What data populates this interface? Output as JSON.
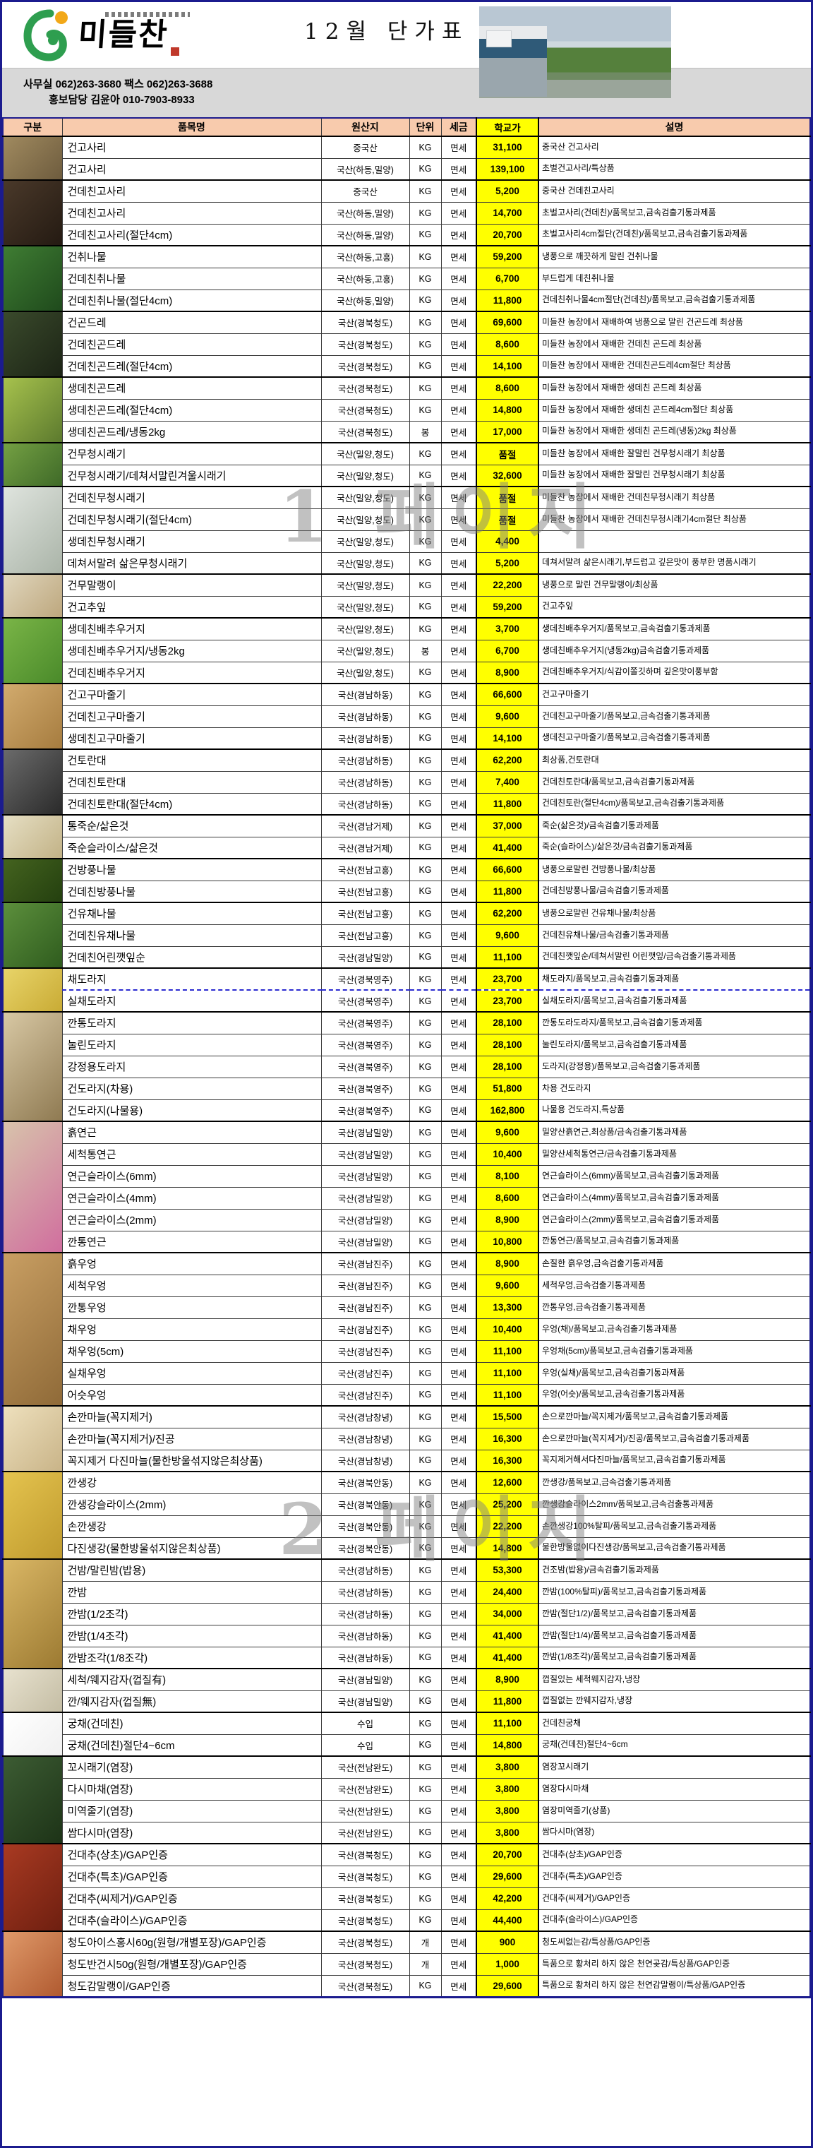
{
  "header": {
    "logo_text": "미들찬",
    "title": "12월 단가표",
    "contact_line1": "사무실 062)263-3680 팩스 062)263-3688",
    "contact_line2": "홍보담당 김윤아 010-7903-8933"
  },
  "watermarks": {
    "page1": "1 페이지",
    "page2": "2 페이지"
  },
  "accent_colors": {
    "header_bg": "#F8CBAD",
    "price_bg": "#FFFF00",
    "sheet_border": "#1B1B8E",
    "contact_bg": "#D8D8D8"
  },
  "table": {
    "columns": [
      "구분",
      "품목명",
      "원산지",
      "단위",
      "세금",
      "학교가",
      "설명"
    ],
    "rows": [
      [
        "건고사리",
        "중국산",
        "KG",
        "면세",
        "31,100",
        "중국산 건고사리"
      ],
      [
        "건고사리",
        "국산(하동,밀양)",
        "KG",
        "면세",
        "139,100",
        "초벌건고사리/특상품"
      ],
      [
        "건데친고사리",
        "중국산",
        "KG",
        "면세",
        "5,200",
        "중국산 건데친고사리"
      ],
      [
        "건데친고사리",
        "국산(하동,밀양)",
        "KG",
        "면세",
        "14,700",
        "초벌고사리(건데친)/품목보고,금속검출기통과제품"
      ],
      [
        "건데친고사리(절단4cm)",
        "국산(하동,밀양)",
        "KG",
        "면세",
        "20,700",
        "초벌고사리4cm절단(건데친)/품목보고,금속검출기통과제품"
      ],
      [
        "건취나물",
        "국산(하동,고흥)",
        "KG",
        "면세",
        "59,200",
        "냉풍으로 깨끗하게 말린 건취나물"
      ],
      [
        "건데친취나물",
        "국산(하동,고흥)",
        "KG",
        "면세",
        "6,700",
        "부드럽게 데친취나물"
      ],
      [
        "건데친취나물(절단4cm)",
        "국산(하동,밀양)",
        "KG",
        "면세",
        "11,800",
        "건데친취나물4cm절단(건데친)/품목보고,금속검출기통과제품"
      ],
      [
        "건곤드레",
        "국산(경북청도)",
        "KG",
        "면세",
        "69,600",
        "미들찬 농장에서 재배하여 냉풍으로 말린 건곤드레 최상품"
      ],
      [
        "건데친곤드레",
        "국산(경북청도)",
        "KG",
        "면세",
        "8,600",
        "미들찬 농장에서 재배한 건데친 곤드레 최상품"
      ],
      [
        "건데친곤드레(절단4cm)",
        "국산(경북청도)",
        "KG",
        "면세",
        "14,100",
        "미들찬 농장에서 재배한 건데친곤드레4cm절단 최상품"
      ],
      [
        "생데친곤드레",
        "국산(경북청도)",
        "KG",
        "면세",
        "8,600",
        "미들찬 농장에서 재배한 생데친 곤드레 최상품"
      ],
      [
        "생데친곤드레(절단4cm)",
        "국산(경북청도)",
        "KG",
        "면세",
        "14,800",
        "미들찬 농장에서 재배한 생데친 곤드레4cm절단 최상품"
      ],
      [
        "생데친곤드레/냉동2kg",
        "국산(경북청도)",
        "봉",
        "면세",
        "17,000",
        "미들찬 농장에서 재배한 생데친 곤드레(냉동)2kg 최상품"
      ],
      [
        "건무청시래기",
        "국산(밀양,청도)",
        "KG",
        "면세",
        "품절",
        "미들찬 농장에서 재배한 잘말린 건무청시래기 최상품"
      ],
      [
        "건무청시래기/데쳐서말린겨울시래기",
        "국산(밀양,청도)",
        "KG",
        "면세",
        "32,600",
        "미들찬 농장에서 재배한 잘말린 건무청시래기 최상품"
      ],
      [
        "건데친무청시래기",
        "국산(밀양,청도)",
        "KG",
        "면세",
        "품절",
        "미들찬 농장에서 재배한 건데친무청시래기 최상품"
      ],
      [
        "건데친무청시래기(절단4cm)",
        "국산(밀양,청도)",
        "KG",
        "면세",
        "품절",
        "미들찬 농장에서 재배한 건데친무청시래기4cm절단 최상품"
      ],
      [
        "생데친무청시래기",
        "국산(밀양,청도)",
        "KG",
        "면세",
        "4,400",
        ""
      ],
      [
        "데쳐서말려 삶은무청시래기",
        "국산(밀양,청도)",
        "KG",
        "면세",
        "5,200",
        "데쳐서말려 삶은시래기,부드럽고 깊은맛이 풍부한 명품시래기"
      ],
      [
        "건무말랭이",
        "국산(밀양,청도)",
        "KG",
        "면세",
        "22,200",
        "냉풍으로 말린 건무말랭이/최상품"
      ],
      [
        "건고추잎",
        "국산(밀양,청도)",
        "KG",
        "면세",
        "59,200",
        "건고추잎"
      ],
      [
        "생데친배추우거지",
        "국산(밀양,청도)",
        "KG",
        "면세",
        "3,700",
        "생데친배추우거지/품목보고,금속검출기통과제품"
      ],
      [
        "생데친배추우거지/냉동2kg",
        "국산(밀양,청도)",
        "봉",
        "면세",
        "6,700",
        "생데친배추우거지(냉동2kg)금속검출기통과제품"
      ],
      [
        "건데친배추우거지",
        "국산(밀양,청도)",
        "KG",
        "면세",
        "8,900",
        "건데친배추우거지/식감이쫄깃하며 깊은맛이풍부함"
      ],
      [
        "건고구마줄기",
        "국산(경남하동)",
        "KG",
        "면세",
        "66,600",
        "건고구마줄기"
      ],
      [
        "건데친고구마줄기",
        "국산(경남하동)",
        "KG",
        "면세",
        "9,600",
        "건데친고구마줄기/품목보고,금속검출기통과제품"
      ],
      [
        "생데친고구마줄기",
        "국산(경남하동)",
        "KG",
        "면세",
        "14,100",
        "생데친고구마줄기/품목보고,금속검출기통과제품"
      ],
      [
        "건토란대",
        "국산(경남하동)",
        "KG",
        "면세",
        "62,200",
        "최상품,건토란대"
      ],
      [
        "건데친토란대",
        "국산(경남하동)",
        "KG",
        "면세",
        "7,400",
        "건데친토란대/품목보고,금속검출기통과제품"
      ],
      [
        "건데친토란대(절단4cm)",
        "국산(경남하동)",
        "KG",
        "면세",
        "11,800",
        "건데친토란(절단4cm)/품목보고,금속검출기통과제품"
      ],
      [
        "통죽순/삶은것",
        "국산(경남거제)",
        "KG",
        "면세",
        "37,000",
        "죽순(삶은것)/금속검출기통과제품"
      ],
      [
        "죽순슬라이스/삶은것",
        "국산(경남거제)",
        "KG",
        "면세",
        "41,400",
        "죽순(슬라이스)/삶은것/금속검출기통과제품"
      ],
      [
        "건방풍나물",
        "국산(전남고흥)",
        "KG",
        "면세",
        "66,600",
        "냉풍으로말린 건방풍나물/최상품"
      ],
      [
        "건데친방풍나물",
        "국산(전남고흥)",
        "KG",
        "면세",
        "11,800",
        "건데친방풍나물/금속검출기통과제품"
      ],
      [
        "건유채나물",
        "국산(전남고흥)",
        "KG",
        "면세",
        "62,200",
        "냉풍으로말린 건유채나물/최상품"
      ],
      [
        "건데친유채나물",
        "국산(전남고흥)",
        "KG",
        "면세",
        "9,600",
        "건데친유채나물/금속검출기통과제품"
      ],
      [
        "건데친어린깻잎순",
        "국산(경남밀양)",
        "KG",
        "면세",
        "11,100",
        "건데친깻잎순/데쳐서말린 어린깻잎/금속검출기통과제품"
      ],
      [
        "채도라지",
        "국산(경북영주)",
        "KG",
        "면세",
        "23,700",
        "채도라지/품목보고,금속검출기통과제품"
      ],
      [
        "실채도라지",
        "국산(경북영주)",
        "KG",
        "면세",
        "23,700",
        "실채도라지/품목보고,금속검출기통과제품"
      ],
      [
        "깐통도라지",
        "국산(경북영주)",
        "KG",
        "면세",
        "28,100",
        "깐통도라도라지/품목보고,금속검출기통과제품"
      ],
      [
        "눌린도라지",
        "국산(경북영주)",
        "KG",
        "면세",
        "28,100",
        "눌린도라지/품목보고,금속검출기통과제품"
      ],
      [
        "강정용도라지",
        "국산(경북영주)",
        "KG",
        "면세",
        "28,100",
        "도라지(강정용)/품목보고,금속검출기통과제품"
      ],
      [
        "건도라지(차용)",
        "국산(경북영주)",
        "KG",
        "면세",
        "51,800",
        "차용 건도라지"
      ],
      [
        "건도라지(나물용)",
        "국산(경북영주)",
        "KG",
        "면세",
        "162,800",
        "나물용 건도라지,특상품"
      ],
      [
        "흙연근",
        "국산(경남밀양)",
        "KG",
        "면세",
        "9,600",
        "밀양산흙연근,최상품/금속검출기통과제품"
      ],
      [
        "세척통연근",
        "국산(경남밀양)",
        "KG",
        "면세",
        "10,400",
        "밀양산세척통연근/금속검출기통과제품"
      ],
      [
        "연근슬라이스(6mm)",
        "국산(경남밀양)",
        "KG",
        "면세",
        "8,100",
        "연근슬라이스(6mm)/품목보고,금속검출기통과제품"
      ],
      [
        "연근슬라이스(4mm)",
        "국산(경남밀양)",
        "KG",
        "면세",
        "8,600",
        "연근슬라이스(4mm)/품목보고,금속검출기통과제품"
      ],
      [
        "연근슬라이스(2mm)",
        "국산(경남밀양)",
        "KG",
        "면세",
        "8,900",
        "연근슬라이스(2mm)/품목보고,금속검출기통과제품"
      ],
      [
        "깐통연근",
        "국산(경남밀양)",
        "KG",
        "면세",
        "10,800",
        "깐통연근/품목보고,금속검출기통과제품"
      ],
      [
        "흙우엉",
        "국산(경남진주)",
        "KG",
        "면세",
        "8,900",
        "손질한 흙우엉,금속검출기통과제품"
      ],
      [
        "세척우엉",
        "국산(경남진주)",
        "KG",
        "면세",
        "9,600",
        "세척우엉,금속검출기통과제품"
      ],
      [
        "깐통우엉",
        "국산(경남진주)",
        "KG",
        "면세",
        "13,300",
        "깐통우엉,금속검출기통과제품"
      ],
      [
        "채우엉",
        "국산(경남진주)",
        "KG",
        "면세",
        "10,400",
        "우엉(채)/품목보고,금속검출기통과제품"
      ],
      [
        "채우엉(5cm)",
        "국산(경남진주)",
        "KG",
        "면세",
        "11,100",
        "우엉채(5cm)/품목보고,금속검출기통과제품"
      ],
      [
        "실채우엉",
        "국산(경남진주)",
        "KG",
        "면세",
        "11,100",
        "우엉(실채)/품목보고,금속검출기통과제품"
      ],
      [
        "어슷우엉",
        "국산(경남진주)",
        "KG",
        "면세",
        "11,100",
        "우엉(어슷)/품목보고,금속검출기통과제품"
      ],
      [
        "손깐마늘(꼭지제거)",
        "국산(경남창녕)",
        "KG",
        "면세",
        "15,500",
        "손으로깐마늘/꼭지제거/품목보고,금속검출기통과제품"
      ],
      [
        "손깐마늘(꼭지제거)/진공",
        "국산(경남창녕)",
        "KG",
        "면세",
        "16,300",
        "손으로깐마늘(꼭지제거)/진공/품목보고,금속검출기통과제품"
      ],
      [
        "꼭지제거 다진마늘(물한방울섞지않은최상품)",
        "국산(경남창녕)",
        "KG",
        "면세",
        "16,300",
        "꼭지제거해서다진마늘/품목보고,금속검출기통과제품"
      ],
      [
        "깐생강",
        "국산(경북안동)",
        "KG",
        "면세",
        "12,600",
        "깐생강/품목보고,금속검출기통과제품"
      ],
      [
        "깐생강슬라이스(2mm)",
        "국산(경북안동)",
        "KG",
        "면세",
        "25,200",
        "깐생강슬라이스2mm/품목보고,금속검출통과제품"
      ],
      [
        "손깐생강",
        "국산(경북안동)",
        "KG",
        "면세",
        "22,200",
        "손깐생강100%탈피/품목보고,금속검출기통과제품"
      ],
      [
        "다진생강(물한방울섞지않은최상품)",
        "국산(경북안동)",
        "KG",
        "면세",
        "14,800",
        "물한방울없이다진생강/품목보고,금속검출기통과제품"
      ],
      [
        "건밤/말린밤(밥용)",
        "국산(경남하동)",
        "KG",
        "면세",
        "53,300",
        "건조밤(밥용)/금속검출기통과제품"
      ],
      [
        "깐밤",
        "국산(경남하동)",
        "KG",
        "면세",
        "24,400",
        "깐밤(100%탈피)/품목보고,금속검출기통과제품"
      ],
      [
        "깐밤(1/2조각)",
        "국산(경남하동)",
        "KG",
        "면세",
        "34,000",
        "깐밤(절단1/2)/품목보고,금속검출기통과제품"
      ],
      [
        "깐밤(1/4조각)",
        "국산(경남하동)",
        "KG",
        "면세",
        "41,400",
        "깐밤(절단1/4)/품목보고,금속검출기통과제품"
      ],
      [
        "깐밤조각(1/8조각)",
        "국산(경남하동)",
        "KG",
        "면세",
        "41,400",
        "깐밤(1/8조각)/품목보고,금속검출기통과제품"
      ],
      [
        "세척/웨지감자(껍질有)",
        "국산(경남밀양)",
        "KG",
        "면세",
        "8,900",
        "껍질있는 세척웨지감자,냉장"
      ],
      [
        "깐/웨지감자(껍질無)",
        "국산(경남밀양)",
        "KG",
        "면세",
        "11,800",
        "껍질없는 깐웨지감자,냉장"
      ],
      [
        "궁채(건데친)",
        "수입",
        "KG",
        "면세",
        "11,100",
        "건데친궁채"
      ],
      [
        "궁채(건데친)절단4~6cm",
        "수입",
        "KG",
        "면세",
        "14,800",
        "궁채(건데친)절단4~6cm"
      ],
      [
        "꼬시래기(염장)",
        "국산(전남완도)",
        "KG",
        "면세",
        "3,800",
        "염장꼬시래기"
      ],
      [
        "다시마채(염장)",
        "국산(전남완도)",
        "KG",
        "면세",
        "3,800",
        "염장다시마채"
      ],
      [
        "미역줄기(염장)",
        "국산(전남완도)",
        "KG",
        "면세",
        "3,800",
        "염장미역줄기(상품)"
      ],
      [
        "쌈다시마(염장)",
        "국산(전남완도)",
        "KG",
        "면세",
        "3,800",
        "쌈다시마(염장)"
      ],
      [
        "건대추(상초)/GAP인증",
        "국산(경북청도)",
        "KG",
        "면세",
        "20,700",
        "건대추(상초)/GAP인증"
      ],
      [
        "건대추(특초)/GAP인증",
        "국산(경북청도)",
        "KG",
        "면세",
        "29,600",
        "건대추(특초)/GAP인증"
      ],
      [
        "건대추(씨제거)/GAP인증",
        "국산(경북청도)",
        "KG",
        "면세",
        "42,200",
        "건대추(씨제거)/GAP인증"
      ],
      [
        "건대추(슬라이스)/GAP인증",
        "국산(경북청도)",
        "KG",
        "면세",
        "44,400",
        "건대추(슬라이스)/GAP인증"
      ],
      [
        "청도아이스홍시60g(원형/개별포장)/GAP인증",
        "국산(경북청도)",
        "개",
        "면세",
        "900",
        "청도씨없는감/특상품/GAP인증"
      ],
      [
        "청도반건시50g(원형/개별포장)/GAP인증",
        "국산(경북청도)",
        "개",
        "면세",
        "1,000",
        "특품으로 황처리 하지 않은 천연곶감/특상품/GAP인증"
      ],
      [
        "청도감말랭이/GAP인증",
        "국산(경북청도)",
        "KG",
        "면세",
        "29,600",
        "특품으로 황처리 하지 않은 천연감말랭이/특상품/GAP인증"
      ]
    ],
    "group_starts": [
      0,
      2,
      5,
      8,
      11,
      14,
      16,
      20,
      22,
      25,
      28,
      31,
      33,
      35,
      38,
      40,
      45,
      51,
      58,
      61,
      65,
      70,
      72,
      74,
      78,
      82
    ],
    "page_break_rows": [
      39
    ],
    "photos": [
      {
        "row": 0,
        "span": 2,
        "c1": "#a08a5f",
        "c2": "#6e5c3e"
      },
      {
        "row": 2,
        "span": 3,
        "c1": "#4a392a",
        "c2": "#241a12"
      },
      {
        "row": 5,
        "span": 3,
        "c1": "#3f7d33",
        "c2": "#1f4a1c"
      },
      {
        "row": 8,
        "span": 3,
        "c1": "#3a4a2c",
        "c2": "#1c2415"
      },
      {
        "row": 11,
        "span": 3,
        "c1": "#a7c24d",
        "c2": "#5c7a2e"
      },
      {
        "row": 14,
        "span": 2,
        "c1": "#74a043",
        "c2": "#3f6a28"
      },
      {
        "row": 16,
        "span": 4,
        "c1": "#dfe4de",
        "c2": "#aab4a8"
      },
      {
        "row": 20,
        "span": 2,
        "c1": "#e0d6bd",
        "c2": "#bda77d"
      },
      {
        "row": 22,
        "span": 3,
        "c1": "#7ab547",
        "c2": "#4a8a2a"
      },
      {
        "row": 25,
        "span": 3,
        "c1": "#d2ab6e",
        "c2": "#a67c3f"
      },
      {
        "row": 28,
        "span": 3,
        "c1": "#6b6b6b",
        "c2": "#2a2a2a"
      },
      {
        "row": 31,
        "span": 2,
        "c1": "#e6dfc4",
        "c2": "#c2b286"
      },
      {
        "row": 33,
        "span": 2,
        "c1": "#44631f",
        "c2": "#24400f"
      },
      {
        "row": 35,
        "span": 3,
        "c1": "#5c8f3c",
        "c2": "#2f5c1e"
      },
      {
        "row": 38,
        "span": 2,
        "c1": "#e8d469",
        "c2": "#c9ab35"
      },
      {
        "row": 40,
        "span": 5,
        "c1": "#d8c8a4",
        "c2": "#8f7a52"
      },
      {
        "row": 45,
        "span": 6,
        "c1": "#d8c3ab",
        "c2": "#d06e9e"
      },
      {
        "row": 51,
        "span": 7,
        "c1": "#c99f63",
        "c2": "#8f6a38"
      },
      {
        "row": 58,
        "span": 3,
        "c1": "#eee0bd",
        "c2": "#c9b488"
      },
      {
        "row": 61,
        "span": 4,
        "c1": "#e5c44f",
        "c2": "#bf9a2e"
      },
      {
        "row": 65,
        "span": 5,
        "c1": "#dab765",
        "c2": "#9c7a32"
      },
      {
        "row": 70,
        "span": 2,
        "c1": "#e8e2cf",
        "c2": "#c4bda4"
      },
      {
        "row": 72,
        "span": 2,
        "c1": "#ffffff",
        "c2": "#f0f0f0"
      },
      {
        "row": 74,
        "span": 4,
        "c1": "#3c5c33",
        "c2": "#1d3317"
      },
      {
        "row": 78,
        "span": 4,
        "c1": "#a93a22",
        "c2": "#6e1f10"
      },
      {
        "row": 82,
        "span": 3,
        "c1": "#e09a6a",
        "c2": "#b05a30"
      }
    ]
  }
}
